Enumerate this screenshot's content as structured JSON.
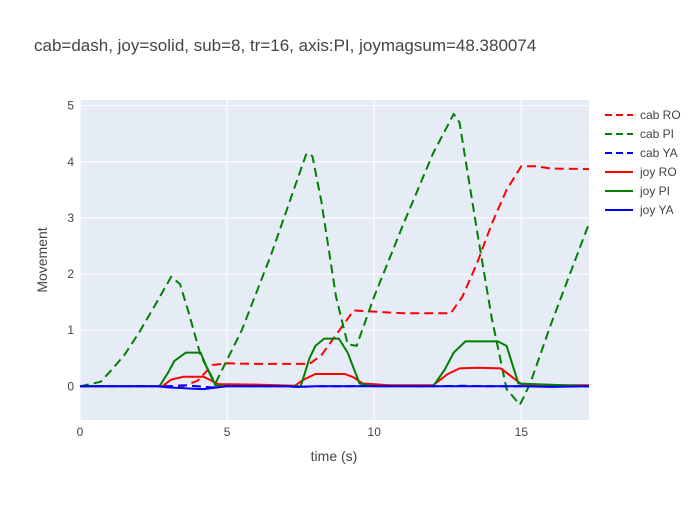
{
  "chart_data": {
    "type": "line",
    "title": "cab=dash, joy=solid, sub=8, tr=16, axis:PI, joymagsum=48.380074",
    "xlabel": "time (s)",
    "ylabel": "Movement",
    "xlim": [
      0,
      17.3
    ],
    "ylim": [
      -0.6,
      5.1
    ],
    "x_ticks": [
      0,
      5,
      10,
      15
    ],
    "y_ticks": [
      0,
      1,
      2,
      3,
      4,
      5
    ],
    "grid": true,
    "legend_position": "top-right",
    "background_color": "#e5ecf6",
    "series": [
      {
        "name": "cab RO",
        "color": "#ff0000",
        "dash": true,
        "x": [
          0,
          3.5,
          4.0,
          4.5,
          5,
          6,
          7,
          7.8,
          8.2,
          9.3,
          10,
          11,
          12,
          12.6,
          13,
          13.5,
          14,
          14.5,
          15,
          15.5,
          16,
          17.3
        ],
        "y": [
          0,
          0,
          0.1,
          0.38,
          0.41,
          0.4,
          0.4,
          0.4,
          0.55,
          1.35,
          1.33,
          1.3,
          1.3,
          1.3,
          1.6,
          2.2,
          2.9,
          3.5,
          3.92,
          3.92,
          3.88,
          3.87
        ]
      },
      {
        "name": "cab PI",
        "color": "#008000",
        "dash": true,
        "x": [
          0,
          0.7,
          1,
          1.5,
          2,
          2.5,
          3.1,
          3.4,
          3.7,
          4.1,
          4.6,
          5.5,
          6.5,
          7.7,
          7.9,
          8.2,
          8.7,
          9.1,
          9.4,
          10,
          11,
          12,
          12.7,
          12.9,
          13.5,
          14,
          14.5,
          14.95,
          15.3,
          16,
          17.3
        ],
        "y": [
          0,
          0.08,
          0.25,
          0.55,
          0.95,
          1.4,
          1.95,
          1.82,
          1.3,
          0.55,
          0.05,
          1.0,
          2.35,
          4.15,
          4.1,
          3.3,
          1.6,
          0.75,
          0.72,
          1.6,
          2.9,
          4.15,
          4.85,
          4.7,
          2.75,
          1.2,
          -0.05,
          -0.33,
          0.05,
          1.1,
          2.9
        ]
      },
      {
        "name": "cab YA",
        "color": "#0000ff",
        "dash": true,
        "x": [
          0,
          2,
          3,
          3.5,
          4,
          4.5,
          5,
          6,
          7,
          7.5,
          8,
          9,
          10,
          11,
          12,
          13,
          14,
          15,
          16,
          17.3
        ],
        "y": [
          0,
          0,
          0,
          0.02,
          0,
          -0.02,
          0.01,
          0,
          0,
          -0.01,
          0,
          0,
          0.01,
          0,
          0,
          0.01,
          0,
          0,
          0,
          0
        ]
      },
      {
        "name": "joy RO",
        "color": "#ff0000",
        "dash": false,
        "x": [
          0,
          2.8,
          3.1,
          3.5,
          4.2,
          4.4,
          4.7,
          6,
          7.3,
          7.6,
          8,
          9,
          9.3,
          9.6,
          10.5,
          12,
          12.5,
          12.9,
          13.5,
          14.3,
          14.6,
          15,
          15.5,
          17.3
        ],
        "y": [
          0,
          0,
          0.12,
          0.17,
          0.17,
          0.12,
          0.04,
          0.03,
          0.01,
          0.12,
          0.22,
          0.22,
          0.16,
          0.05,
          0.02,
          0.02,
          0.22,
          0.32,
          0.33,
          0.32,
          0.2,
          0.04,
          0.02,
          0.02
        ]
      },
      {
        "name": "joy PI",
        "color": "#008000",
        "dash": false,
        "x": [
          0,
          2.7,
          3.0,
          3.2,
          3.6,
          4.1,
          4.3,
          4.6,
          5,
          6,
          7.5,
          7.8,
          8.0,
          8.3,
          8.8,
          9.1,
          9.5,
          10,
          12,
          12.4,
          12.7,
          13.1,
          14.2,
          14.5,
          14.9,
          17.3
        ],
        "y": [
          0,
          0,
          0.25,
          0.45,
          0.6,
          0.6,
          0.35,
          0.02,
          0,
          0,
          0,
          0.5,
          0.72,
          0.85,
          0.85,
          0.6,
          0.05,
          0,
          0,
          0.3,
          0.6,
          0.8,
          0.8,
          0.72,
          0.05,
          0
        ]
      },
      {
        "name": "joy YA",
        "color": "#0000ff",
        "dash": false,
        "x": [
          0,
          2.6,
          3.0,
          3.8,
          4.2,
          4.5,
          5,
          6,
          7,
          7.4,
          8,
          9,
          10,
          11,
          12,
          13,
          14,
          15,
          16,
          17.3
        ],
        "y": [
          0,
          0,
          -0.02,
          -0.04,
          -0.05,
          -0.03,
          0,
          0,
          0,
          -0.01,
          0,
          0,
          0,
          0,
          0,
          0,
          0,
          0,
          -0.01,
          0
        ]
      }
    ]
  }
}
